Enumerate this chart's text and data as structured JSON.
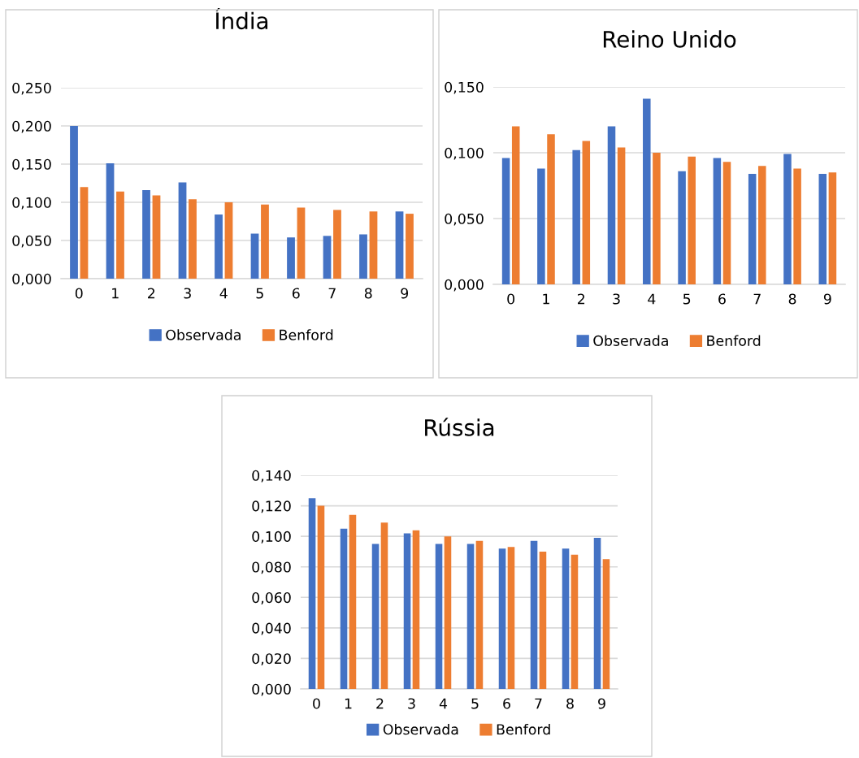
{
  "chart_data": [
    {
      "type": "bar",
      "title": "Índia",
      "categories": [
        "0",
        "1",
        "2",
        "3",
        "4",
        "5",
        "6",
        "7",
        "8",
        "9"
      ],
      "series": [
        {
          "name": "Observada",
          "color": "#4472c4",
          "values": [
            0.2,
            0.151,
            0.116,
            0.126,
            0.084,
            0.059,
            0.054,
            0.056,
            0.058,
            0.088
          ]
        },
        {
          "name": "Benford",
          "color": "#ed7d31",
          "values": [
            0.12,
            0.114,
            0.109,
            0.104,
            0.1,
            0.097,
            0.093,
            0.09,
            0.088,
            0.085
          ]
        }
      ],
      "ylim": [
        0,
        0.25
      ],
      "yticks": [
        {
          "value": 0,
          "label": "0,000"
        },
        {
          "value": 0.05,
          "label": "0,050"
        },
        {
          "value": 0.1,
          "label": "0,100"
        },
        {
          "value": 0.15,
          "label": "0,150"
        },
        {
          "value": 0.2,
          "label": "0,200"
        },
        {
          "value": 0.25,
          "label": "0,250"
        }
      ],
      "grid": "y",
      "legend": "bottom"
    },
    {
      "type": "bar",
      "title": "Reino Unido",
      "categories": [
        "0",
        "1",
        "2",
        "3",
        "4",
        "5",
        "6",
        "7",
        "8",
        "9"
      ],
      "series": [
        {
          "name": "Observada",
          "color": "#4472c4",
          "values": [
            0.096,
            0.088,
            0.102,
            0.12,
            0.141,
            0.086,
            0.096,
            0.084,
            0.099,
            0.084
          ]
        },
        {
          "name": "Benford",
          "color": "#ed7d31",
          "values": [
            0.12,
            0.114,
            0.109,
            0.104,
            0.1,
            0.097,
            0.093,
            0.09,
            0.088,
            0.085
          ]
        }
      ],
      "ylim": [
        0,
        0.15
      ],
      "yticks": [
        {
          "value": 0,
          "label": "0,000"
        },
        {
          "value": 0.05,
          "label": "0,050"
        },
        {
          "value": 0.1,
          "label": "0,100"
        },
        {
          "value": 0.15,
          "label": "0,150"
        }
      ],
      "grid": "y",
      "legend": "bottom"
    },
    {
      "type": "bar",
      "title": "Rússia",
      "categories": [
        "0",
        "1",
        "2",
        "3",
        "4",
        "5",
        "6",
        "7",
        "8",
        "9"
      ],
      "series": [
        {
          "name": "Observada",
          "color": "#4472c4",
          "values": [
            0.125,
            0.105,
            0.095,
            0.102,
            0.095,
            0.095,
            0.092,
            0.097,
            0.092,
            0.099
          ]
        },
        {
          "name": "Benford",
          "color": "#ed7d31",
          "values": [
            0.12,
            0.114,
            0.109,
            0.104,
            0.1,
            0.097,
            0.093,
            0.09,
            0.088,
            0.085
          ]
        }
      ],
      "ylim": [
        0,
        0.14
      ],
      "yticks": [
        {
          "value": 0,
          "label": "0,000"
        },
        {
          "value": 0.02,
          "label": "0,020"
        },
        {
          "value": 0.04,
          "label": "0,040"
        },
        {
          "value": 0.06,
          "label": "0,060"
        },
        {
          "value": 0.08,
          "label": "0,080"
        },
        {
          "value": 0.1,
          "label": "0,100"
        },
        {
          "value": 0.12,
          "label": "0,120"
        },
        {
          "value": 0.14,
          "label": "0,140"
        }
      ],
      "grid": "y",
      "legend": "bottom"
    }
  ]
}
